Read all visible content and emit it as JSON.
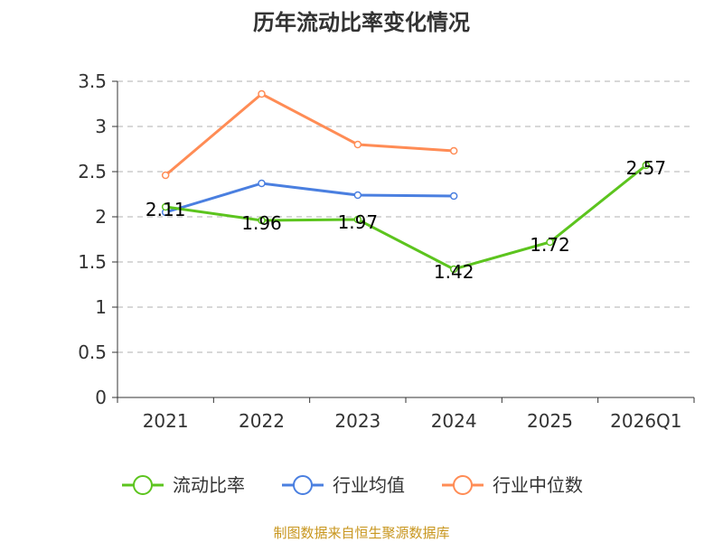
{
  "chart_data": {
    "type": "line",
    "title": "历年流动比率变化情况",
    "categories": [
      "2021",
      "2022",
      "2023",
      "2024",
      "2025",
      "2026Q1"
    ],
    "ylim": [
      0,
      3.5
    ],
    "yticks": [
      "0",
      "0.5",
      "1",
      "1.5",
      "2",
      "2.5",
      "3",
      "3.5"
    ],
    "grid": true,
    "legend_position": "bottom",
    "series": [
      {
        "name": "流动比率",
        "color": "#5cc41e",
        "values": [
          2.11,
          1.96,
          1.97,
          1.42,
          1.72,
          2.57
        ],
        "labels": [
          "2.11",
          "1.96",
          "1.97",
          "1.42",
          "1.72",
          "2.57"
        ]
      },
      {
        "name": "行业均值",
        "color": "#4a7fe0",
        "values": [
          2.05,
          2.37,
          2.24,
          2.23,
          null,
          null
        ]
      },
      {
        "name": "行业中位数",
        "color": "#ff8c55",
        "values": [
          2.46,
          3.36,
          2.8,
          2.73,
          null,
          null
        ]
      }
    ],
    "source": "制图数据来自恒生聚源数据库"
  }
}
